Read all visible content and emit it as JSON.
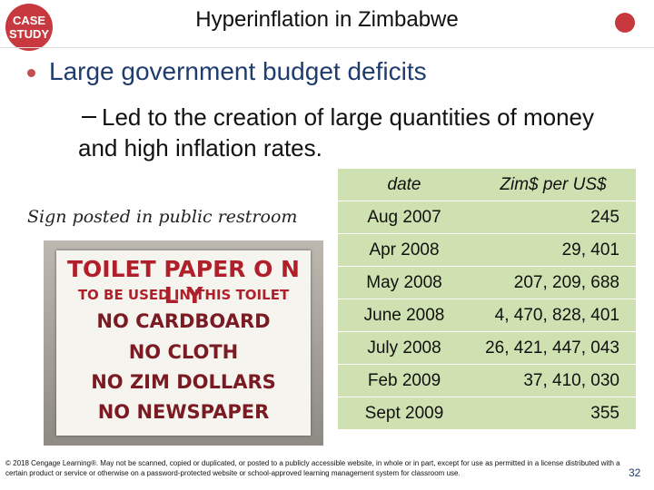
{
  "header": {
    "badge": [
      "CASE",
      "STUDY"
    ],
    "title": "Hyperinflation in Zimbabwe"
  },
  "bullet": {
    "text": "Large government budget deficits",
    "sub": "Led to the creation of large quantities of money and high inflation rates."
  },
  "image": {
    "caption": "Sign posted in public restroom",
    "sign_lines": [
      "TOILET PAPER O N L Y",
      "TO BE USED IN THIS TOILET",
      "NO CARDBOARD",
      "NO CLOTH",
      "NO ZIM DOLLARS",
      "NO NEWSPAPER"
    ]
  },
  "table": {
    "header": [
      "date",
      "Zim$ per US$"
    ],
    "rows": [
      [
        "Aug 2007",
        "245"
      ],
      [
        "Apr 2008",
        "29, 401"
      ],
      [
        "May 2008",
        "207, 209, 688"
      ],
      [
        "June 2008",
        "4, 470, 828, 401"
      ],
      [
        "July 2008",
        "26, 421, 447, 043"
      ],
      [
        "Feb 2009",
        "37, 410, 030"
      ],
      [
        "Sept 2009",
        "355"
      ]
    ]
  },
  "footer": {
    "copyright": "© 2018 Cengage Learning®. May not be scanned, copied or duplicated, or posted to a publicly accessible website, in whole or in part, except for use as permitted in a license distributed with a certain product or service or otherwise on a password-protected website or school-approved learning management system for classroom use.",
    "page": "32"
  }
}
